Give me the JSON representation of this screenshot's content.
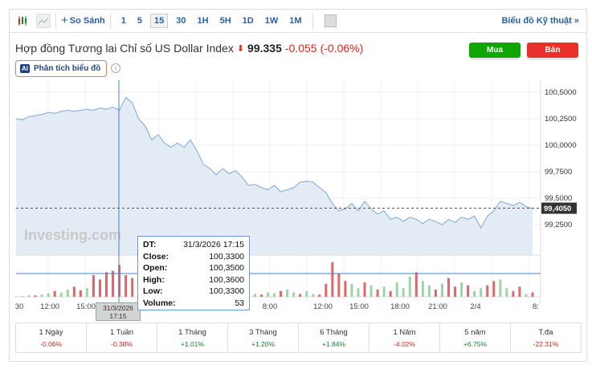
{
  "toolbar": {
    "compare_label": "So Sánh",
    "timeframes": [
      "1",
      "5",
      "15",
      "30",
      "1H",
      "5H",
      "1D",
      "1W",
      "1M"
    ],
    "active_timeframe": "15",
    "technical_link": "Biểu đồ Kỹ thuật »"
  },
  "header": {
    "name": "Hợp đồng Tương lai Chỉ số US Dollar Index",
    "direction": "down",
    "price": "99.335",
    "change": "-0.055",
    "change_pct": "(-0.06%)",
    "buy_label": "Mua",
    "sell_label": "Bán",
    "buy_color": "#0ea600",
    "sell_color": "#e9302a",
    "ai_badge": "AI",
    "ai_label": "Phân tích biểu đồ",
    "info_icon": "i"
  },
  "chart_data": {
    "type": "area",
    "watermark": "Investing.com",
    "y_ticks": [
      "100,5000",
      "100,2500",
      "100,0000",
      "99,7500",
      "99,5000",
      "99,2500"
    ],
    "ylim": [
      99.0,
      100.55
    ],
    "current_value_label": "99,4050",
    "current_value": 99.405,
    "x_ticks": [
      "30",
      "12:00",
      "15:00",
      "8:00",
      "12:00",
      "15:00",
      "18:00",
      "21:00",
      "2/4",
      "8:"
    ],
    "prices": [
      100.25,
      100.24,
      100.27,
      100.28,
      100.29,
      100.31,
      100.3,
      100.32,
      100.33,
      100.32,
      100.33,
      100.34,
      100.33,
      100.35,
      100.34,
      100.36,
      100.33,
      100.45,
      100.4,
      100.25,
      100.18,
      100.05,
      100.1,
      100.02,
      99.98,
      100.02,
      99.98,
      100.05,
      99.95,
      99.82,
      99.78,
      99.72,
      99.78,
      99.73,
      99.76,
      99.7,
      99.62,
      99.63,
      99.6,
      99.58,
      99.62,
      99.56,
      99.58,
      99.6,
      99.65,
      99.66,
      99.65,
      99.6,
      99.55,
      99.45,
      99.38,
      99.4,
      99.45,
      99.38,
      99.47,
      99.4,
      99.35,
      99.38,
      99.3,
      99.32,
      99.28,
      99.32,
      99.3,
      99.26,
      99.3,
      99.28,
      99.25,
      99.3,
      99.27,
      99.32,
      99.3,
      99.33,
      99.22,
      99.33,
      99.38,
      99.47,
      99.45,
      99.43,
      99.46,
      99.42,
      99.4
    ],
    "volumes": [
      1,
      1,
      2,
      2,
      3,
      5,
      8,
      6,
      10,
      14,
      9,
      12,
      30,
      24,
      34,
      36,
      44,
      30,
      26,
      20,
      15,
      22,
      26,
      18,
      10,
      12,
      14,
      8,
      6,
      10,
      8,
      6,
      4,
      6,
      8,
      3,
      2,
      4,
      3,
      6,
      5,
      8,
      10,
      6,
      4,
      8,
      4,
      3,
      18,
      48,
      32,
      22,
      18,
      12,
      20,
      16,
      10,
      14,
      8,
      20,
      12,
      28,
      34,
      22,
      16,
      10,
      18,
      26,
      14,
      20,
      16,
      8,
      12,
      16,
      22,
      24,
      12,
      8,
      14,
      4,
      6
    ],
    "volume_directions": [
      "u",
      "u",
      "u",
      "d",
      "u",
      "u",
      "d",
      "u",
      "u",
      "d",
      "d",
      "u",
      "d",
      "d",
      "d",
      "d",
      "d",
      "d",
      "d",
      "u",
      "d",
      "u",
      "d",
      "d",
      "u",
      "u",
      "d",
      "u",
      "u",
      "d",
      "u",
      "u",
      "d",
      "u",
      "d",
      "u",
      "d",
      "u",
      "d",
      "u",
      "u",
      "d",
      "u",
      "u",
      "d",
      "u",
      "u",
      "d",
      "d",
      "d",
      "d",
      "d",
      "u",
      "u",
      "d",
      "u",
      "d",
      "u",
      "d",
      "u",
      "u",
      "u",
      "d",
      "u",
      "u",
      "d",
      "u",
      "d",
      "d",
      "u",
      "d",
      "u",
      "u",
      "d",
      "d",
      "u",
      "u",
      "d",
      "d",
      "u",
      "d"
    ]
  },
  "tooltip": {
    "dt_label": "DT:",
    "dt": "31/3/2026 17:15",
    "close_label": "Close:",
    "close": "100,3300",
    "open_label": "Open:",
    "open": "100,3500",
    "high_label": "High:",
    "high": "100,3600",
    "low_label": "Low:",
    "low": "100,3300",
    "volume_label": "Volume:",
    "volume": "53"
  },
  "crosshair_date": [
    "31/3/2026",
    "17:15"
  ],
  "periods": [
    {
      "label": "1 Ngày",
      "value": "-0.06%",
      "dir": "down"
    },
    {
      "label": "1 Tuần",
      "value": "-0.38%",
      "dir": "down"
    },
    {
      "label": "1 Tháng",
      "value": "+1.01%",
      "dir": "up"
    },
    {
      "label": "3 Tháng",
      "value": "+1.20%",
      "dir": "up"
    },
    {
      "label": "6 Tháng",
      "value": "+1.84%",
      "dir": "up"
    },
    {
      "label": "1 Năm",
      "value": "-4.02%",
      "dir": "down"
    },
    {
      "label": "5 năm",
      "value": "+6.75%",
      "dir": "up"
    },
    {
      "label": "T.đa",
      "value": "-22.31%",
      "dir": "down"
    }
  ]
}
